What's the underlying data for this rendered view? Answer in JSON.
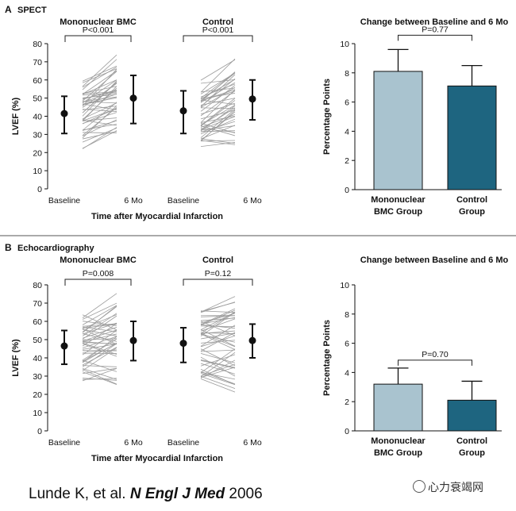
{
  "panels": [
    {
      "letter": "A",
      "title": "SPECT",
      "left": {
        "ylabel": "LVEF (%)",
        "xlabel": "Time after Myocardial Infarction",
        "ylim": [
          0,
          80
        ],
        "yticks": [
          0,
          10,
          20,
          30,
          40,
          50,
          60,
          70,
          80
        ],
        "groups": [
          {
            "name": "Mononuclear BMC",
            "pvalue": "P<0.001",
            "baseline_label": "Baseline",
            "followup_label": "6 Mo",
            "baseline": {
              "mean": 41.5,
              "low": 30.5,
              "high": 51
            },
            "followup": {
              "mean": 50,
              "low": 36,
              "high": 62.5
            }
          },
          {
            "name": "Control",
            "pvalue": "P<0.001",
            "baseline_label": "Baseline",
            "followup_label": "6 Mo",
            "baseline": {
              "mean": 43,
              "low": 30.5,
              "high": 54
            },
            "followup": {
              "mean": 49.5,
              "low": 38,
              "high": 60
            }
          }
        ]
      },
      "right": {
        "title": "Change between Baseline and 6 Mo",
        "ylabel": "Percentage Points",
        "ylim": [
          0,
          10
        ],
        "yticks": [
          0,
          2,
          4,
          6,
          8,
          10
        ],
        "pvalue": "P=0.77",
        "bars": [
          {
            "label": [
              "Mononuclear",
              "BMC Group"
            ],
            "value": 8.1,
            "err": 9.6,
            "color": "#a9c3cf"
          },
          {
            "label": [
              "Control",
              "Group"
            ],
            "value": 7.1,
            "err": 8.5,
            "color": "#1e6580"
          }
        ]
      }
    },
    {
      "letter": "B",
      "title": "Echocardiography",
      "left": {
        "ylabel": "LVEF (%)",
        "xlabel": "Time after Myocardial Infarction",
        "ylim": [
          0,
          80
        ],
        "yticks": [
          0,
          10,
          20,
          30,
          40,
          50,
          60,
          70,
          80
        ],
        "groups": [
          {
            "name": "Mononuclear BMC",
            "pvalue": "P=0.008",
            "baseline_label": "Baseline",
            "followup_label": "6 Mo",
            "baseline": {
              "mean": 46.5,
              "low": 36.5,
              "high": 55
            },
            "followup": {
              "mean": 49.5,
              "low": 38.5,
              "high": 60
            }
          },
          {
            "name": "Control",
            "pvalue": "P=0.12",
            "baseline_label": "Baseline",
            "followup_label": "6 Mo",
            "baseline": {
              "mean": 48,
              "low": 37.5,
              "high": 56.5
            },
            "followup": {
              "mean": 49.5,
              "low": 40,
              "high": 58.5
            }
          }
        ]
      },
      "right": {
        "title": "Change between Baseline and 6 Mo",
        "ylabel": "Percentage Points",
        "ylim": [
          0,
          10
        ],
        "yticks": [
          0,
          2,
          4,
          6,
          8,
          10
        ],
        "pvalue": "P=0.70",
        "bars": [
          {
            "label": [
              "Mononuclear",
              "BMC Group"
            ],
            "value": 3.2,
            "err": 4.3,
            "color": "#a9c3cf"
          },
          {
            "label": [
              "Control",
              "Group"
            ],
            "value": 2.1,
            "err": 3.4,
            "color": "#1e6580"
          }
        ]
      }
    }
  ],
  "footer": {
    "authors": "Lunde K, et al.",
    "journal": "N Engl J Med",
    "year": "2006"
  },
  "watermark": "心力衰竭网",
  "chart_data": [
    {
      "type": "scatter",
      "title": "SPECT",
      "ylabel": "LVEF (%)",
      "xlabel": "Time after Myocardial Infarction",
      "ylim": [
        0,
        80
      ],
      "categories": [
        "Baseline",
        "6 Mo"
      ],
      "series": [
        {
          "name": "Mononuclear BMC",
          "values": [
            41.5,
            50
          ],
          "ci_low": [
            30.5,
            36
          ],
          "ci_high": [
            51,
            62.5
          ]
        },
        {
          "name": "Control",
          "values": [
            43,
            49.5
          ],
          "ci_low": [
            30.5,
            38
          ],
          "ci_high": [
            54,
            60
          ]
        }
      ]
    },
    {
      "type": "bar",
      "title": "Change between Baseline and 6 Mo",
      "ylabel": "Percentage Points",
      "ylim": [
        0,
        10
      ],
      "categories": [
        "Mononuclear BMC Group",
        "Control Group"
      ],
      "values": [
        8.1,
        7.1
      ],
      "err_high": [
        9.6,
        8.5
      ]
    },
    {
      "type": "scatter",
      "title": "Echocardiography",
      "ylabel": "LVEF (%)",
      "xlabel": "Time after Myocardial Infarction",
      "ylim": [
        0,
        80
      ],
      "categories": [
        "Baseline",
        "6 Mo"
      ],
      "series": [
        {
          "name": "Mononuclear BMC",
          "values": [
            46.5,
            49.5
          ],
          "ci_low": [
            36.5,
            38.5
          ],
          "ci_high": [
            55,
            60
          ]
        },
        {
          "name": "Control",
          "values": [
            48,
            49.5
          ],
          "ci_low": [
            37.5,
            40
          ],
          "ci_high": [
            56.5,
            58.5
          ]
        }
      ]
    },
    {
      "type": "bar",
      "title": "Change between Baseline and 6 Mo",
      "ylabel": "Percentage Points",
      "ylim": [
        0,
        10
      ],
      "categories": [
        "Mononuclear BMC Group",
        "Control Group"
      ],
      "values": [
        3.2,
        2.1
      ],
      "err_high": [
        4.3,
        3.4
      ]
    }
  ]
}
